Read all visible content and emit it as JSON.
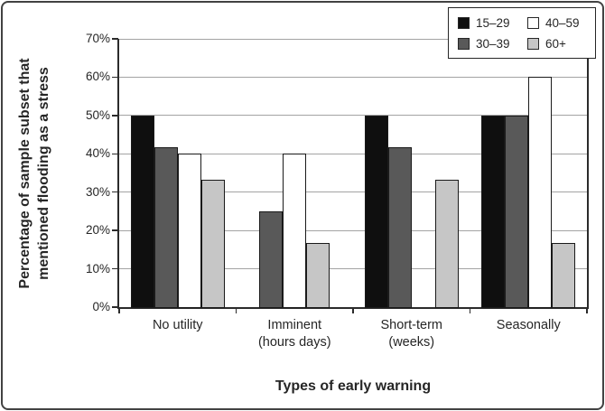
{
  "chart_data": {
    "type": "bar",
    "title": "",
    "xlabel": "Types of early warning",
    "ylabel": "Percentage of sample subset that mentioned flooding as a stress",
    "ylabel_lines": [
      "Percentage of sample subset that",
      "mentioned flooding as a stress"
    ],
    "categories": [
      {
        "label": "No utility",
        "lines": [
          "No utility"
        ]
      },
      {
        "label": "Imminent (hours days)",
        "lines": [
          "Imminent",
          "(hours days)"
        ]
      },
      {
        "label": "Short-term (weeks)",
        "lines": [
          "Short-term",
          "(weeks)"
        ]
      },
      {
        "label": "Seasonally",
        "lines": [
          "Seasonally"
        ]
      }
    ],
    "series": [
      {
        "name": "15–29",
        "color": "#0f0f0f",
        "values": [
          50,
          0,
          50,
          50
        ]
      },
      {
        "name": "30–39",
        "color": "#595959",
        "values": [
          41.7,
          25,
          41.7,
          50
        ]
      },
      {
        "name": "40–59",
        "color": "#ffffff",
        "values": [
          40,
          40,
          0,
          60
        ]
      },
      {
        "name": "60+",
        "color": "#c6c6c6",
        "values": [
          33.3,
          16.7,
          33.3,
          16.7
        ]
      }
    ],
    "ylim": [
      0,
      70
    ],
    "y_tick_labels": [
      "0%",
      "10%",
      "20%",
      "30%",
      "40%",
      "50%",
      "60%",
      "70%"
    ],
    "grid": true,
    "legend_position": "top-right"
  },
  "colors": {
    "gridline": "#a3a3a3",
    "axis": "#2b2b2b",
    "text": "#262626",
    "bar_outline": "#1a1a1a"
  }
}
